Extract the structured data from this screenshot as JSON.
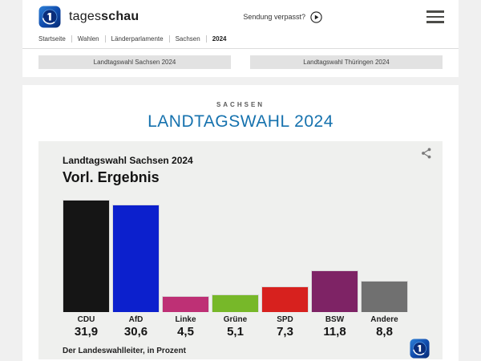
{
  "header": {
    "brand_regular": "tages",
    "brand_bold": "schau",
    "missed_show_label": "Sendung verpasst?"
  },
  "breadcrumb": {
    "items": [
      "Startseite",
      "Wahlen",
      "Länderparlamente",
      "Sachsen",
      "2024"
    ]
  },
  "quick_links": {
    "left": "Landtagswahl Sachsen 2024",
    "right": "Landtagswahl Thüringen 2024"
  },
  "page": {
    "kicker": "SACHSEN",
    "title": "LANDTAGSWAHL 2024",
    "title_color": "#1672ae"
  },
  "chart_data": {
    "type": "bar",
    "title": "Landtagswahl Sachsen 2024",
    "subtitle": "Vorl. Ergebnis",
    "categories": [
      "CDU",
      "AfD",
      "Linke",
      "Grüne",
      "SPD",
      "BSW",
      "Andere"
    ],
    "values": [
      31.9,
      30.6,
      4.5,
      5.1,
      7.3,
      11.8,
      8.8
    ],
    "value_labels": [
      "31,9",
      "30,6",
      "4,5",
      "5,1",
      "7,3",
      "11,8",
      "8,8"
    ],
    "colors": [
      "#151515",
      "#0c20cd",
      "#be3075",
      "#77b829",
      "#d7211e",
      "#7e2365",
      "#707070"
    ],
    "source": "Der Landeswahlleiter, in Prozent",
    "unit": "Prozent",
    "ylim": [
      0,
      32
    ],
    "grid": false,
    "legend": "none"
  }
}
